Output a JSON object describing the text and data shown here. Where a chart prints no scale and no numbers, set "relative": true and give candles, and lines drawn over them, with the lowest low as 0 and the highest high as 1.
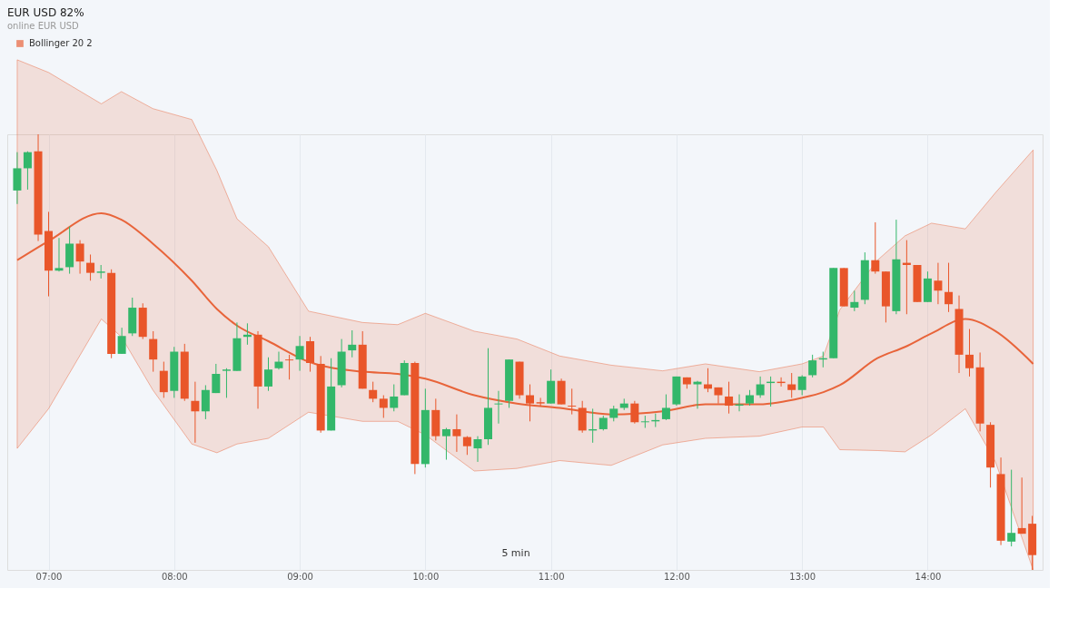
{
  "chart_data": {
    "type": "candlestick",
    "title": "EUR USD 82%",
    "subtitle": "online EUR USD",
    "relative": true,
    "grid": "x",
    "legend": "top left",
    "xlim": [
      6.707,
      14.879
    ],
    "xticks": [
      {
        "value": 7,
        "label": "07:00"
      },
      {
        "value": 8,
        "label": "08:00"
      },
      {
        "value": 9,
        "label": "09:00"
      },
      {
        "value": 10,
        "label": "10:00"
      },
      {
        "value": 11,
        "label": "11:00"
      },
      {
        "value": 12,
        "label": "12:00"
      },
      {
        "value": 13,
        "label": "13:00"
      },
      {
        "value": 14,
        "label": "14:00"
      }
    ],
    "x": [
      6.75,
      6.833,
      6.917,
      7,
      7.083,
      7.167,
      7.25,
      7.333,
      7.417,
      7.5,
      7.583,
      7.667,
      7.75,
      7.833,
      7.917,
      8,
      8.083,
      8.167,
      8.25,
      8.333,
      8.417,
      8.5,
      8.583,
      8.667,
      8.75,
      8.833,
      8.917,
      9,
      9.083,
      9.167,
      9.25,
      9.333,
      9.417,
      9.5,
      9.583,
      9.667,
      9.75,
      9.833,
      9.917,
      10,
      10.083,
      10.167,
      10.25,
      10.333,
      10.417,
      10.5,
      10.583,
      10.667,
      10.75,
      10.833,
      10.917,
      11,
      11.083,
      11.167,
      11.25,
      11.333,
      11.417,
      11.5,
      11.583,
      11.667,
      11.75,
      11.833,
      11.917,
      12,
      12.083,
      12.167,
      12.25,
      12.333,
      12.417,
      12.5,
      12.583,
      12.667,
      12.75,
      12.833,
      12.917,
      13,
      13.083,
      13.167,
      13.25,
      13.333,
      13.417,
      13.5,
      13.583,
      13.667,
      13.75,
      13.833,
      13.917,
      14,
      14.083,
      14.167,
      14.25,
      14.333,
      14.417,
      14.5,
      14.583,
      14.667,
      14.75,
      14.833
    ],
    "ohlc": [
      [
        0.871,
        0.959,
        0.84,
        0.922
      ],
      [
        0.922,
        0.961,
        0.873,
        0.959
      ],
      [
        0.961,
        1,
        0.755,
        0.77
      ],
      [
        0.778,
        0.822,
        0.628,
        0.687
      ],
      [
        0.687,
        0.762,
        0.685,
        0.693
      ],
      [
        0.695,
        0.788,
        0.68,
        0.749
      ],
      [
        0.749,
        0.757,
        0.68,
        0.708
      ],
      [
        0.705,
        0.724,
        0.664,
        0.682
      ],
      [
        0.682,
        0.7,
        0.669,
        0.685
      ],
      [
        0.682,
        0.69,
        0.486,
        0.496
      ],
      [
        0.496,
        0.556,
        0.496,
        0.537
      ],
      [
        0.543,
        0.625,
        0.537,
        0.602
      ],
      [
        0.602,
        0.612,
        0.53,
        0.535
      ],
      [
        0.53,
        0.548,
        0.455,
        0.483
      ],
      [
        0.457,
        0.478,
        0.395,
        0.408
      ],
      [
        0.411,
        0.512,
        0.395,
        0.501
      ],
      [
        0.501,
        0.519,
        0.388,
        0.393
      ],
      [
        0.388,
        0.432,
        0.292,
        0.364
      ],
      [
        0.364,
        0.424,
        0.346,
        0.413
      ],
      [
        0.406,
        0.473,
        0.406,
        0.45
      ],
      [
        0.457,
        0.463,
        0.395,
        0.46
      ],
      [
        0.457,
        0.568,
        0.457,
        0.532
      ],
      [
        0.535,
        0.566,
        0.517,
        0.54
      ],
      [
        0.54,
        0.548,
        0.37,
        0.421
      ],
      [
        0.421,
        0.488,
        0.411,
        0.46
      ],
      [
        0.463,
        0.501,
        0.46,
        0.478
      ],
      [
        0.483,
        0.494,
        0.437,
        0.481
      ],
      [
        0.483,
        0.537,
        0.457,
        0.514
      ],
      [
        0.525,
        0.535,
        0.455,
        0.475
      ],
      [
        0.473,
        0.491,
        0.315,
        0.32
      ],
      [
        0.32,
        0.486,
        0.32,
        0.421
      ],
      [
        0.424,
        0.53,
        0.419,
        0.501
      ],
      [
        0.504,
        0.55,
        0.488,
        0.517
      ],
      [
        0.517,
        0.548,
        0.416,
        0.416
      ],
      [
        0.413,
        0.432,
        0.385,
        0.393
      ],
      [
        0.393,
        0.401,
        0.349,
        0.372
      ],
      [
        0.372,
        0.426,
        0.364,
        0.398
      ],
      [
        0.401,
        0.481,
        0.401,
        0.475
      ],
      [
        0.475,
        0.478,
        0.22,
        0.243
      ],
      [
        0.243,
        0.416,
        0.235,
        0.367
      ],
      [
        0.367,
        0.393,
        0.297,
        0.307
      ],
      [
        0.307,
        0.326,
        0.253,
        0.323
      ],
      [
        0.323,
        0.357,
        0.271,
        0.307
      ],
      [
        0.305,
        0.307,
        0.264,
        0.284
      ],
      [
        0.279,
        0.307,
        0.248,
        0.3
      ],
      [
        0.3,
        0.509,
        0.287,
        0.372
      ],
      [
        0.38,
        0.411,
        0.336,
        0.382
      ],
      [
        0.388,
        0.483,
        0.372,
        0.483
      ],
      [
        0.478,
        0.478,
        0.393,
        0.401
      ],
      [
        0.401,
        0.426,
        0.341,
        0.382
      ],
      [
        0.385,
        0.395,
        0.375,
        0.382
      ],
      [
        0.382,
        0.46,
        0.382,
        0.434
      ],
      [
        0.434,
        0.439,
        0.38,
        0.38
      ],
      [
        0.377,
        0.416,
        0.357,
        0.375
      ],
      [
        0.372,
        0.388,
        0.315,
        0.32
      ],
      [
        0.32,
        0.37,
        0.292,
        0.323
      ],
      [
        0.323,
        0.354,
        0.32,
        0.349
      ],
      [
        0.349,
        0.377,
        0.341,
        0.37
      ],
      [
        0.372,
        0.393,
        0.367,
        0.382
      ],
      [
        0.382,
        0.388,
        0.336,
        0.339
      ],
      [
        0.339,
        0.354,
        0.326,
        0.341
      ],
      [
        0.341,
        0.359,
        0.328,
        0.344
      ],
      [
        0.346,
        0.403,
        0.344,
        0.372
      ],
      [
        0.38,
        0.444,
        0.377,
        0.444
      ],
      [
        0.442,
        0.442,
        0.416,
        0.426
      ],
      [
        0.426,
        0.434,
        0.37,
        0.432
      ],
      [
        0.426,
        0.463,
        0.408,
        0.416
      ],
      [
        0.419,
        0.419,
        0.382,
        0.401
      ],
      [
        0.398,
        0.432,
        0.359,
        0.377
      ],
      [
        0.377,
        0.403,
        0.364,
        0.38
      ],
      [
        0.382,
        0.413,
        0.377,
        0.401
      ],
      [
        0.401,
        0.444,
        0.395,
        0.426
      ],
      [
        0.429,
        0.444,
        0.375,
        0.432
      ],
      [
        0.432,
        0.442,
        0.421,
        0.429
      ],
      [
        0.426,
        0.452,
        0.395,
        0.413
      ],
      [
        0.413,
        0.447,
        0.401,
        0.444
      ],
      [
        0.447,
        0.494,
        0.442,
        0.481
      ],
      [
        0.483,
        0.501,
        0.465,
        0.486
      ],
      [
        0.486,
        0.693,
        0.486,
        0.693
      ],
      [
        0.693,
        0.693,
        0.605,
        0.605
      ],
      [
        0.602,
        0.641,
        0.594,
        0.615
      ],
      [
        0.62,
        0.729,
        0.61,
        0.711
      ],
      [
        0.711,
        0.798,
        0.68,
        0.685
      ],
      [
        0.685,
        0.685,
        0.568,
        0.605
      ],
      [
        0.594,
        0.804,
        0.587,
        0.713
      ],
      [
        0.705,
        0.757,
        0.587,
        0.7
      ],
      [
        0.7,
        0.7,
        0.615,
        0.615
      ],
      [
        0.615,
        0.685,
        0.615,
        0.669
      ],
      [
        0.664,
        0.705,
        0.61,
        0.641
      ],
      [
        0.638,
        0.705,
        0.592,
        0.61
      ],
      [
        0.599,
        0.63,
        0.452,
        0.494
      ],
      [
        0.494,
        0.553,
        0.444,
        0.463
      ],
      [
        0.465,
        0.499,
        0.318,
        0.336
      ],
      [
        0.333,
        0.339,
        0.189,
        0.235
      ],
      [
        0.22,
        0.258,
        0.057,
        0.067
      ],
      [
        0.065,
        0.23,
        0.054,
        0.085
      ],
      [
        0.096,
        0.212,
        0.083,
        0.083
      ],
      [
        0.106,
        0.124,
        0,
        0.034
      ]
    ],
    "colors": [
      "#33b76a",
      "#33b76a",
      "#e9562a",
      "#e9562a",
      "#33b76a",
      "#33b76a",
      "#e9562a",
      "#e9562a",
      "#33b76a",
      "#e9562a",
      "#33b76a",
      "#33b76a",
      "#e9562a",
      "#e9562a",
      "#e9562a",
      "#33b76a",
      "#e9562a",
      "#e9562a",
      "#33b76a",
      "#33b76a",
      "#33b76a",
      "#33b76a",
      "#33b76a",
      "#e9562a",
      "#33b76a",
      "#33b76a",
      "#e9562a",
      "#33b76a",
      "#e9562a",
      "#e9562a",
      "#33b76a",
      "#33b76a",
      "#33b76a",
      "#e9562a",
      "#e9562a",
      "#e9562a",
      "#33b76a",
      "#33b76a",
      "#e9562a",
      "#33b76a",
      "#e9562a",
      "#33b76a",
      "#e9562a",
      "#e9562a",
      "#33b76a",
      "#33b76a",
      "#33b76a",
      "#33b76a",
      "#e9562a",
      "#e9562a",
      "#e9562a",
      "#33b76a",
      "#e9562a",
      "#e9562a",
      "#e9562a",
      "#33b76a",
      "#33b76a",
      "#33b76a",
      "#33b76a",
      "#e9562a",
      "#33b76a",
      "#33b76a",
      "#33b76a",
      "#33b76a",
      "#e9562a",
      "#33b76a",
      "#e9562a",
      "#e9562a",
      "#e9562a",
      "#33b76a",
      "#33b76a",
      "#33b76a",
      "#33b76a",
      "#e9562a",
      "#e9562a",
      "#33b76a",
      "#33b76a",
      "#33b76a",
      "#33b76a",
      "#e9562a",
      "#33b76a",
      "#33b76a",
      "#e9562a",
      "#e9562a",
      "#33b76a",
      "#e9562a",
      "#e9562a",
      "#33b76a",
      "#e9562a",
      "#e9562a",
      "#e9562a",
      "#e9562a",
      "#e9562a",
      "#e9562a",
      "#e9562a",
      "#33b76a",
      "#e9562a",
      "#e9562a"
    ],
    "series": [
      {
        "type": "line",
        "name": "Bollinger 20 2",
        "color": "#e8643a",
        "x": [
          6.75,
          7,
          7.42,
          7.58,
          7.83,
          8.14,
          8.34,
          8.5,
          8.75,
          9.07,
          9.5,
          9.78,
          10,
          10.39,
          10.73,
          11.07,
          11.48,
          11.89,
          12.23,
          12.66,
          13,
          13.17,
          13.3,
          13.6,
          13.82,
          14.03,
          14.3,
          14.54,
          14.84
        ],
        "values": [
          0.711,
          0.755,
          0.819,
          0.804,
          0.749,
          0.664,
          0.599,
          0.561,
          0.525,
          0.478,
          0.455,
          0.45,
          0.439,
          0.401,
          0.382,
          0.372,
          0.357,
          0.364,
          0.38,
          0.38,
          0.395,
          0.408,
          0.424,
          0.486,
          0.512,
          0.543,
          0.576,
          0.548,
          0.473
        ],
        "upper": [
          1.171,
          1.142,
          1.07,
          1.098,
          1.059,
          1.034,
          0.917,
          0.806,
          0.742,
          0.594,
          0.568,
          0.563,
          0.589,
          0.548,
          0.53,
          0.491,
          0.47,
          0.457,
          0.473,
          0.455,
          0.473,
          0.491,
          0.597,
          0.711,
          0.767,
          0.796,
          0.783,
          0.866,
          0.964
        ],
        "lower": [
          0.279,
          0.37,
          0.576,
          0.535,
          0.413,
          0.289,
          0.269,
          0.289,
          0.302,
          0.362,
          0.341,
          0.341,
          0.31,
          0.227,
          0.233,
          0.251,
          0.24,
          0.287,
          0.302,
          0.307,
          0.328,
          0.328,
          0.276,
          0.274,
          0.271,
          0.31,
          0.37,
          0.248,
          0
        ]
      }
    ],
    "annotations": [
      "5 min"
    ]
  }
}
